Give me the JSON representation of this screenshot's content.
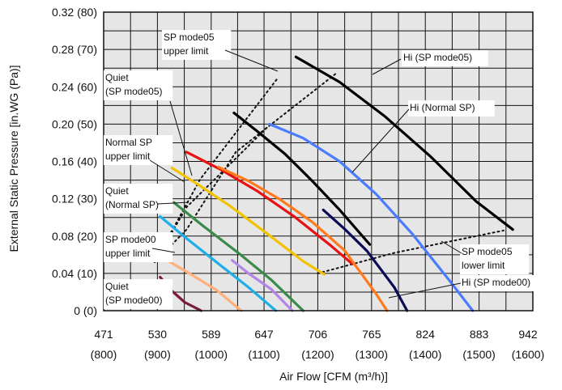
{
  "chart_data": {
    "type": "line",
    "xlabel": "Air Flow [CFM (m³/h)]",
    "ylabel": "External Static Pressure [in.WG (Pa)]",
    "xlim": [
      471,
      942
    ],
    "ylim": [
      0,
      0.32
    ],
    "grid": true,
    "x_ticks": [
      {
        "value": 471,
        "label": "471",
        "sub": "(800)"
      },
      {
        "value": 530,
        "label": "530",
        "sub": "(900)"
      },
      {
        "value": 589,
        "label": "589",
        "sub": "(1000)"
      },
      {
        "value": 647,
        "label": "647",
        "sub": "(1100)"
      },
      {
        "value": 706,
        "label": "706",
        "sub": "(1200)"
      },
      {
        "value": 765,
        "label": "765",
        "sub": "(1300)"
      },
      {
        "value": 824,
        "label": "824",
        "sub": "(1400)"
      },
      {
        "value": 883,
        "label": "883",
        "sub": "(1500)"
      },
      {
        "value": 942,
        "label": "942",
        "sub": "(1600)"
      }
    ],
    "y_ticks": [
      {
        "value": 0.32,
        "label": "0.32 (80)"
      },
      {
        "value": 0.28,
        "label": "0.28 (70)"
      },
      {
        "value": 0.24,
        "label": "0.24 (60)"
      },
      {
        "value": 0.2,
        "label": "0.20 (50)"
      },
      {
        "value": 0.16,
        "label": "0.16 (40)"
      },
      {
        "value": 0.12,
        "label": "0.12 (30)"
      },
      {
        "value": 0.08,
        "label": "0.08 (20)"
      },
      {
        "value": 0.04,
        "label": "0.04 (10)"
      },
      {
        "value": 0.0,
        "label": "0 (0)"
      }
    ],
    "series": [
      {
        "color": "#000000",
        "x": [
          682,
          730,
          780,
          830,
          880,
          920
        ],
        "y": [
          0.272,
          0.245,
          0.208,
          0.165,
          0.117,
          0.087
        ]
      },
      {
        "color": "#4b7bff",
        "x": [
          653,
          690,
          730,
          770,
          810,
          850,
          876
        ],
        "y": [
          0.2,
          0.185,
          0.16,
          0.125,
          0.082,
          0.033,
          0.0
        ]
      },
      {
        "color": "#000000",
        "x": [
          614,
          640,
          670,
          700,
          730,
          763
        ],
        "y": [
          0.212,
          0.192,
          0.168,
          0.139,
          0.108,
          0.071
        ]
      },
      {
        "color": "#0a0a55",
        "x": [
          712,
          735,
          760,
          790,
          804
        ],
        "y": [
          0.108,
          0.088,
          0.064,
          0.025,
          0.0
        ]
      },
      {
        "color": "#e81010",
        "x": [
          562,
          600,
          640,
          680,
          720,
          744
        ],
        "y": [
          0.17,
          0.151,
          0.128,
          0.101,
          0.07,
          0.05
        ]
      },
      {
        "color": "#ff7a1a",
        "x": [
          597,
          630,
          665,
          700,
          735,
          770,
          782
        ],
        "y": [
          0.154,
          0.139,
          0.119,
          0.095,
          0.065,
          0.018,
          0.0
        ]
      },
      {
        "color": "#f2c200",
        "x": [
          546,
          575,
          610,
          650,
          690,
          713
        ],
        "y": [
          0.153,
          0.135,
          0.112,
          0.083,
          0.053,
          0.039
        ]
      },
      {
        "color": "#3a8a4a",
        "x": [
          548,
          580,
          620,
          655,
          690
        ],
        "y": [
          0.116,
          0.091,
          0.061,
          0.033,
          0.0
        ]
      },
      {
        "color": "#1faee8",
        "x": [
          533,
          560,
          600,
          630,
          660
        ],
        "y": [
          0.101,
          0.079,
          0.048,
          0.025,
          0.0
        ]
      },
      {
        "color": "#b385e6",
        "x": [
          612,
          630,
          655,
          678
        ],
        "y": [
          0.054,
          0.04,
          0.023,
          0.0
        ]
      },
      {
        "color": "#ffb07a",
        "x": [
          541,
          565,
          595,
          622
        ],
        "y": [
          0.054,
          0.04,
          0.022,
          0.0
        ]
      },
      {
        "color": "#7a1a40",
        "x": [
          533,
          545,
          560,
          578
        ],
        "y": [
          0.036,
          0.022,
          0.009,
          0.0
        ]
      }
    ],
    "guide_lines": [
      {
        "x": [
          527,
          577,
          661
        ],
        "y": [
          0.052,
          0.141,
          0.248
        ]
      },
      {
        "x": [
          527,
          562,
          652
        ],
        "y": [
          0.052,
          0.111,
          0.198
        ]
      },
      {
        "x": [
          527,
          562,
          616,
          727
        ],
        "y": [
          0.052,
          0.087,
          0.17,
          0.255
        ]
      },
      {
        "x": [
          706,
          790,
          910
        ],
        "y": [
          0.04,
          0.062,
          0.086
        ]
      }
    ],
    "annotations": [
      {
        "id": "sp-mode05-upper",
        "lines": [
          "SP mode05",
          "upper limit"
        ]
      },
      {
        "id": "hi-sp-mode05",
        "lines": [
          "Hi (SP mode05)"
        ]
      },
      {
        "id": "quiet-sp-mode05",
        "lines": [
          "Quiet",
          "(SP mode05)"
        ]
      },
      {
        "id": "hi-normal-sp",
        "lines": [
          "Hi (Normal SP)"
        ]
      },
      {
        "id": "normal-sp-upper",
        "lines": [
          "Normal SP",
          "upper limit"
        ]
      },
      {
        "id": "quiet-normal-sp",
        "lines": [
          "Quiet",
          "(Normal SP)"
        ]
      },
      {
        "id": "sp-mode00-upper",
        "lines": [
          "SP mode00",
          "upper limit"
        ]
      },
      {
        "id": "sp-mode05-lower",
        "lines": [
          "SP mode05",
          "lower limit"
        ]
      },
      {
        "id": "hi-sp-mode00",
        "lines": [
          "Hi (SP mode00)"
        ]
      },
      {
        "id": "quiet-sp-mode00",
        "lines": [
          "Quiet",
          "(SP mode00)"
        ]
      }
    ]
  }
}
